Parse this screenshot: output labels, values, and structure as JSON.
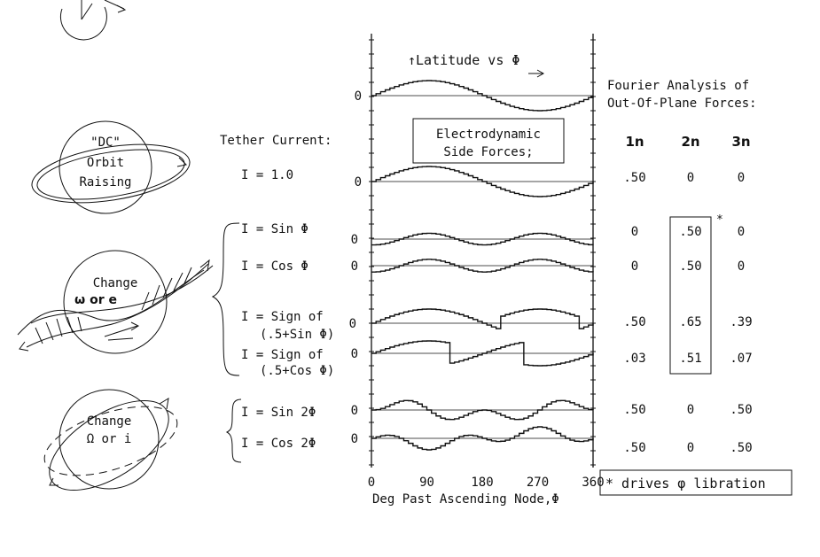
{
  "plot": {
    "title": "Latitude vs Φ",
    "axis_label": "Deg Past Ascending Node,Φ",
    "zero": "0",
    "x_ticks": [
      "0",
      "90",
      "180",
      "270",
      "360"
    ]
  },
  "box_title": [
    "Electrodynamic",
    "Side Forces;"
  ],
  "tether_header": "Tether Current:",
  "currents": [
    {
      "line1": "I = 1.0"
    },
    {
      "line1": "I = Sin Φ"
    },
    {
      "line1": "I = Cos Φ"
    },
    {
      "line1": "I = Sign of",
      "line2": "(.5+Sin Φ)"
    },
    {
      "line1": "I = Sign of",
      "line2": "(.5+Cos Φ)"
    },
    {
      "line1": "I = Sin 2Φ"
    },
    {
      "line1": "I = Cos 2Φ"
    }
  ],
  "fourier": {
    "title1": "Fourier Analysis of",
    "title2": "Out-Of-Plane Forces:",
    "headers": [
      "1n",
      "2n",
      "3n"
    ],
    "rows": [
      [
        ".50",
        "0",
        "0"
      ],
      [
        "0",
        ".50",
        "0"
      ],
      [
        "0",
        ".50",
        "0"
      ],
      [
        ".50",
        ".65",
        ".39"
      ],
      [
        ".03",
        ".51",
        ".07"
      ],
      [
        ".50",
        "0",
        ".50"
      ],
      [
        ".50",
        "0",
        ".50"
      ]
    ],
    "asterisk": "*"
  },
  "footnote": "* drives φ libration",
  "orbit_labels": {
    "dc": [
      "\"DC\"",
      "Orbit",
      "Raising"
    ],
    "change_w": [
      "Change",
      "ω or e"
    ],
    "change_o": [
      "Change",
      "Ω or i"
    ]
  },
  "colors": {
    "ink": "#111111",
    "paper": "#ffffff"
  }
}
